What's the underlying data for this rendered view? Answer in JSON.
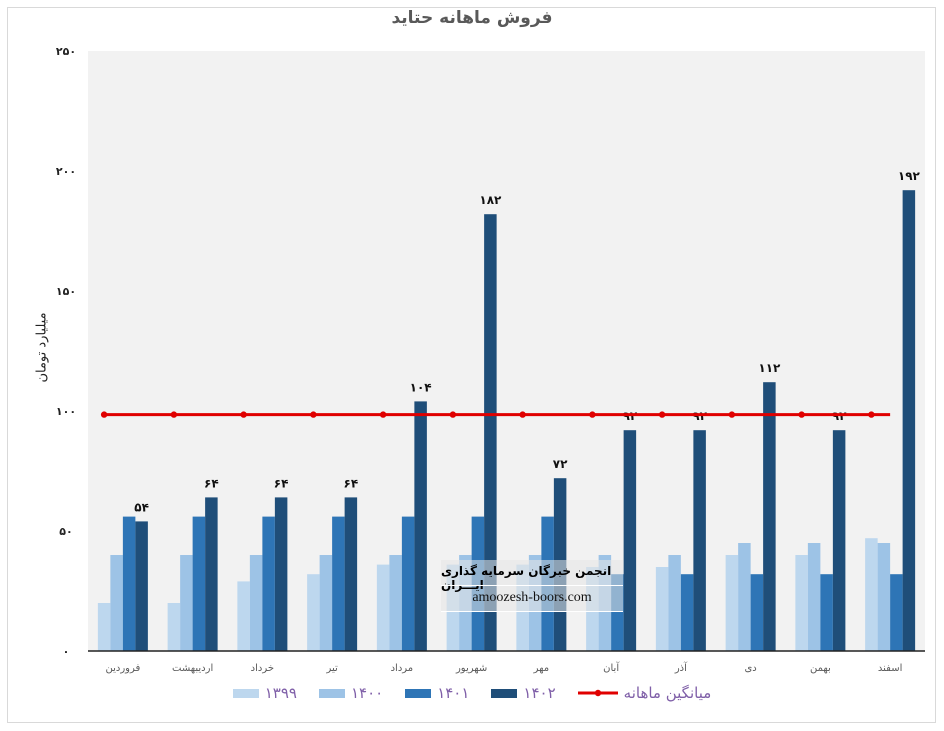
{
  "chart_data": {
    "type": "bar",
    "title": "فروش ماهانه حتاید",
    "ylabel": "میلیارد تومان",
    "xlabel": "",
    "ylim": [
      0,
      250
    ],
    "yticks": [
      0,
      50,
      100,
      150,
      200,
      250
    ],
    "ytick_labels": [
      "۰",
      "۵۰",
      "۱۰۰",
      "۱۵۰",
      "۲۰۰",
      "۲۵۰"
    ],
    "categories": [
      "فروردین",
      "اردیبهشت",
      "خرداد",
      "تیر",
      "مرداد",
      "شهریور",
      "مهر",
      "آبان",
      "آذر",
      "دی",
      "بهمن",
      "اسفند"
    ],
    "series": [
      {
        "name": "۱۳۹۹",
        "color": "#bdd7ee",
        "values": [
          20,
          20,
          29,
          32,
          36,
          36,
          36,
          35,
          35,
          40,
          40,
          47
        ]
      },
      {
        "name": "۱۴۰۰",
        "color": "#9dc3e6",
        "values": [
          40,
          40,
          40,
          40,
          40,
          40,
          40,
          40,
          40,
          45,
          45,
          45
        ]
      },
      {
        "name": "۱۴۰۱",
        "color": "#2e75b6",
        "values": [
          56,
          56,
          56,
          56,
          56,
          56,
          56,
          32,
          32,
          32,
          32,
          32
        ]
      },
      {
        "name": "۱۴۰۲",
        "color": "#1f4e79",
        "values": [
          54,
          64,
          64,
          64,
          104,
          182,
          72,
          92,
          92,
          112,
          92,
          192
        ],
        "data_labels": [
          "۵۴",
          "۶۴",
          "۶۴",
          "۶۴",
          "۱۰۴",
          "۱۸۲",
          "۷۲",
          "۹۲",
          "۹۲",
          "۱۱۲",
          "۹۲",
          "۱۹۲"
        ]
      }
    ],
    "average_line": {
      "name": "میانگین ماهانه",
      "color": "#e00000",
      "value": 98.5
    },
    "legend_position": "bottom",
    "grid": false
  },
  "watermark": {
    "line1": "انجمن خبرگان سرمایه گذاری ایـــران",
    "line2": "amoozesh-boors.com"
  }
}
